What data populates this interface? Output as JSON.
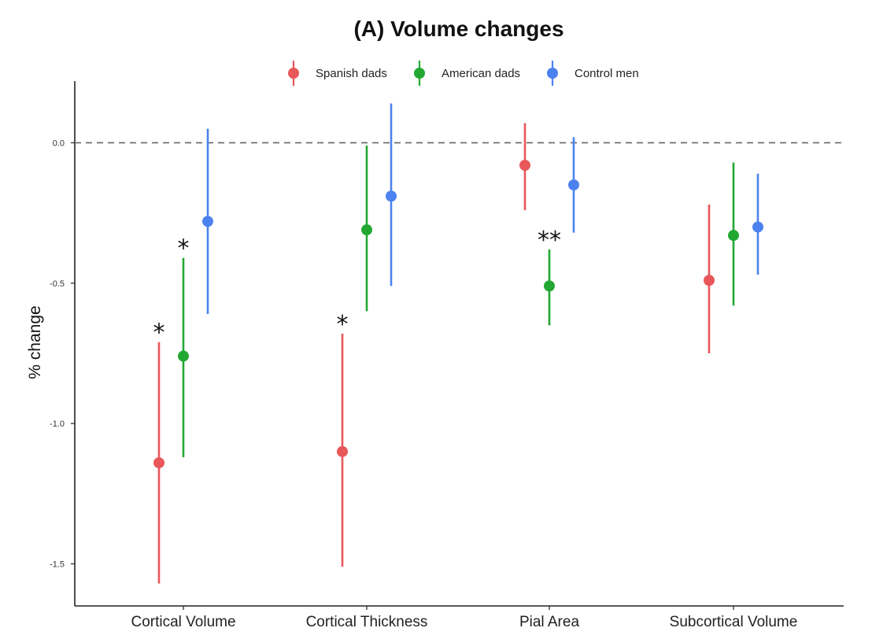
{
  "chart_data": {
    "type": "scatter",
    "title": "(A) Volume changes",
    "xlabel": "",
    "ylabel": "% change",
    "categories": [
      "Cortical Volume",
      "Cortical Thickness",
      "Pial Area",
      "Subcortical Volume"
    ],
    "ylim": [
      -1.65,
      0.22
    ],
    "yticks": [
      0.0,
      -0.5,
      -1.0,
      -1.5
    ],
    "ytick_labels": [
      "0.0",
      "-0.5",
      "-1.0",
      "-1.5"
    ],
    "reference_line": 0.0,
    "grid": false,
    "legend_position": "top",
    "series": [
      {
        "name": "Spanish dads",
        "color": "#e8575a",
        "values": [
          -1.14,
          -1.1,
          -0.08,
          -0.49
        ],
        "lower": [
          -1.57,
          -1.51,
          -0.24,
          -0.75
        ],
        "upper": [
          -0.71,
          -0.68,
          0.07,
          -0.22
        ]
      },
      {
        "name": "American dads",
        "color": "#22a832",
        "values": [
          -0.76,
          -0.31,
          -0.51,
          -0.33
        ],
        "lower": [
          -1.12,
          -0.6,
          -0.65,
          -0.58
        ],
        "upper": [
          -0.41,
          -0.01,
          -0.38,
          -0.07
        ]
      },
      {
        "name": "Control men",
        "color": "#4c82f0",
        "values": [
          -0.28,
          -0.19,
          -0.15,
          -0.3
        ],
        "lower": [
          -0.61,
          -0.51,
          -0.32,
          -0.47
        ],
        "upper": [
          0.05,
          0.14,
          0.02,
          -0.11
        ]
      }
    ],
    "annotations": [
      {
        "category": 0,
        "series": 0,
        "text": "*"
      },
      {
        "category": 0,
        "series": 1,
        "text": "*"
      },
      {
        "category": 1,
        "series": 0,
        "text": "*"
      },
      {
        "category": 2,
        "series": 1,
        "text": "**"
      }
    ]
  }
}
